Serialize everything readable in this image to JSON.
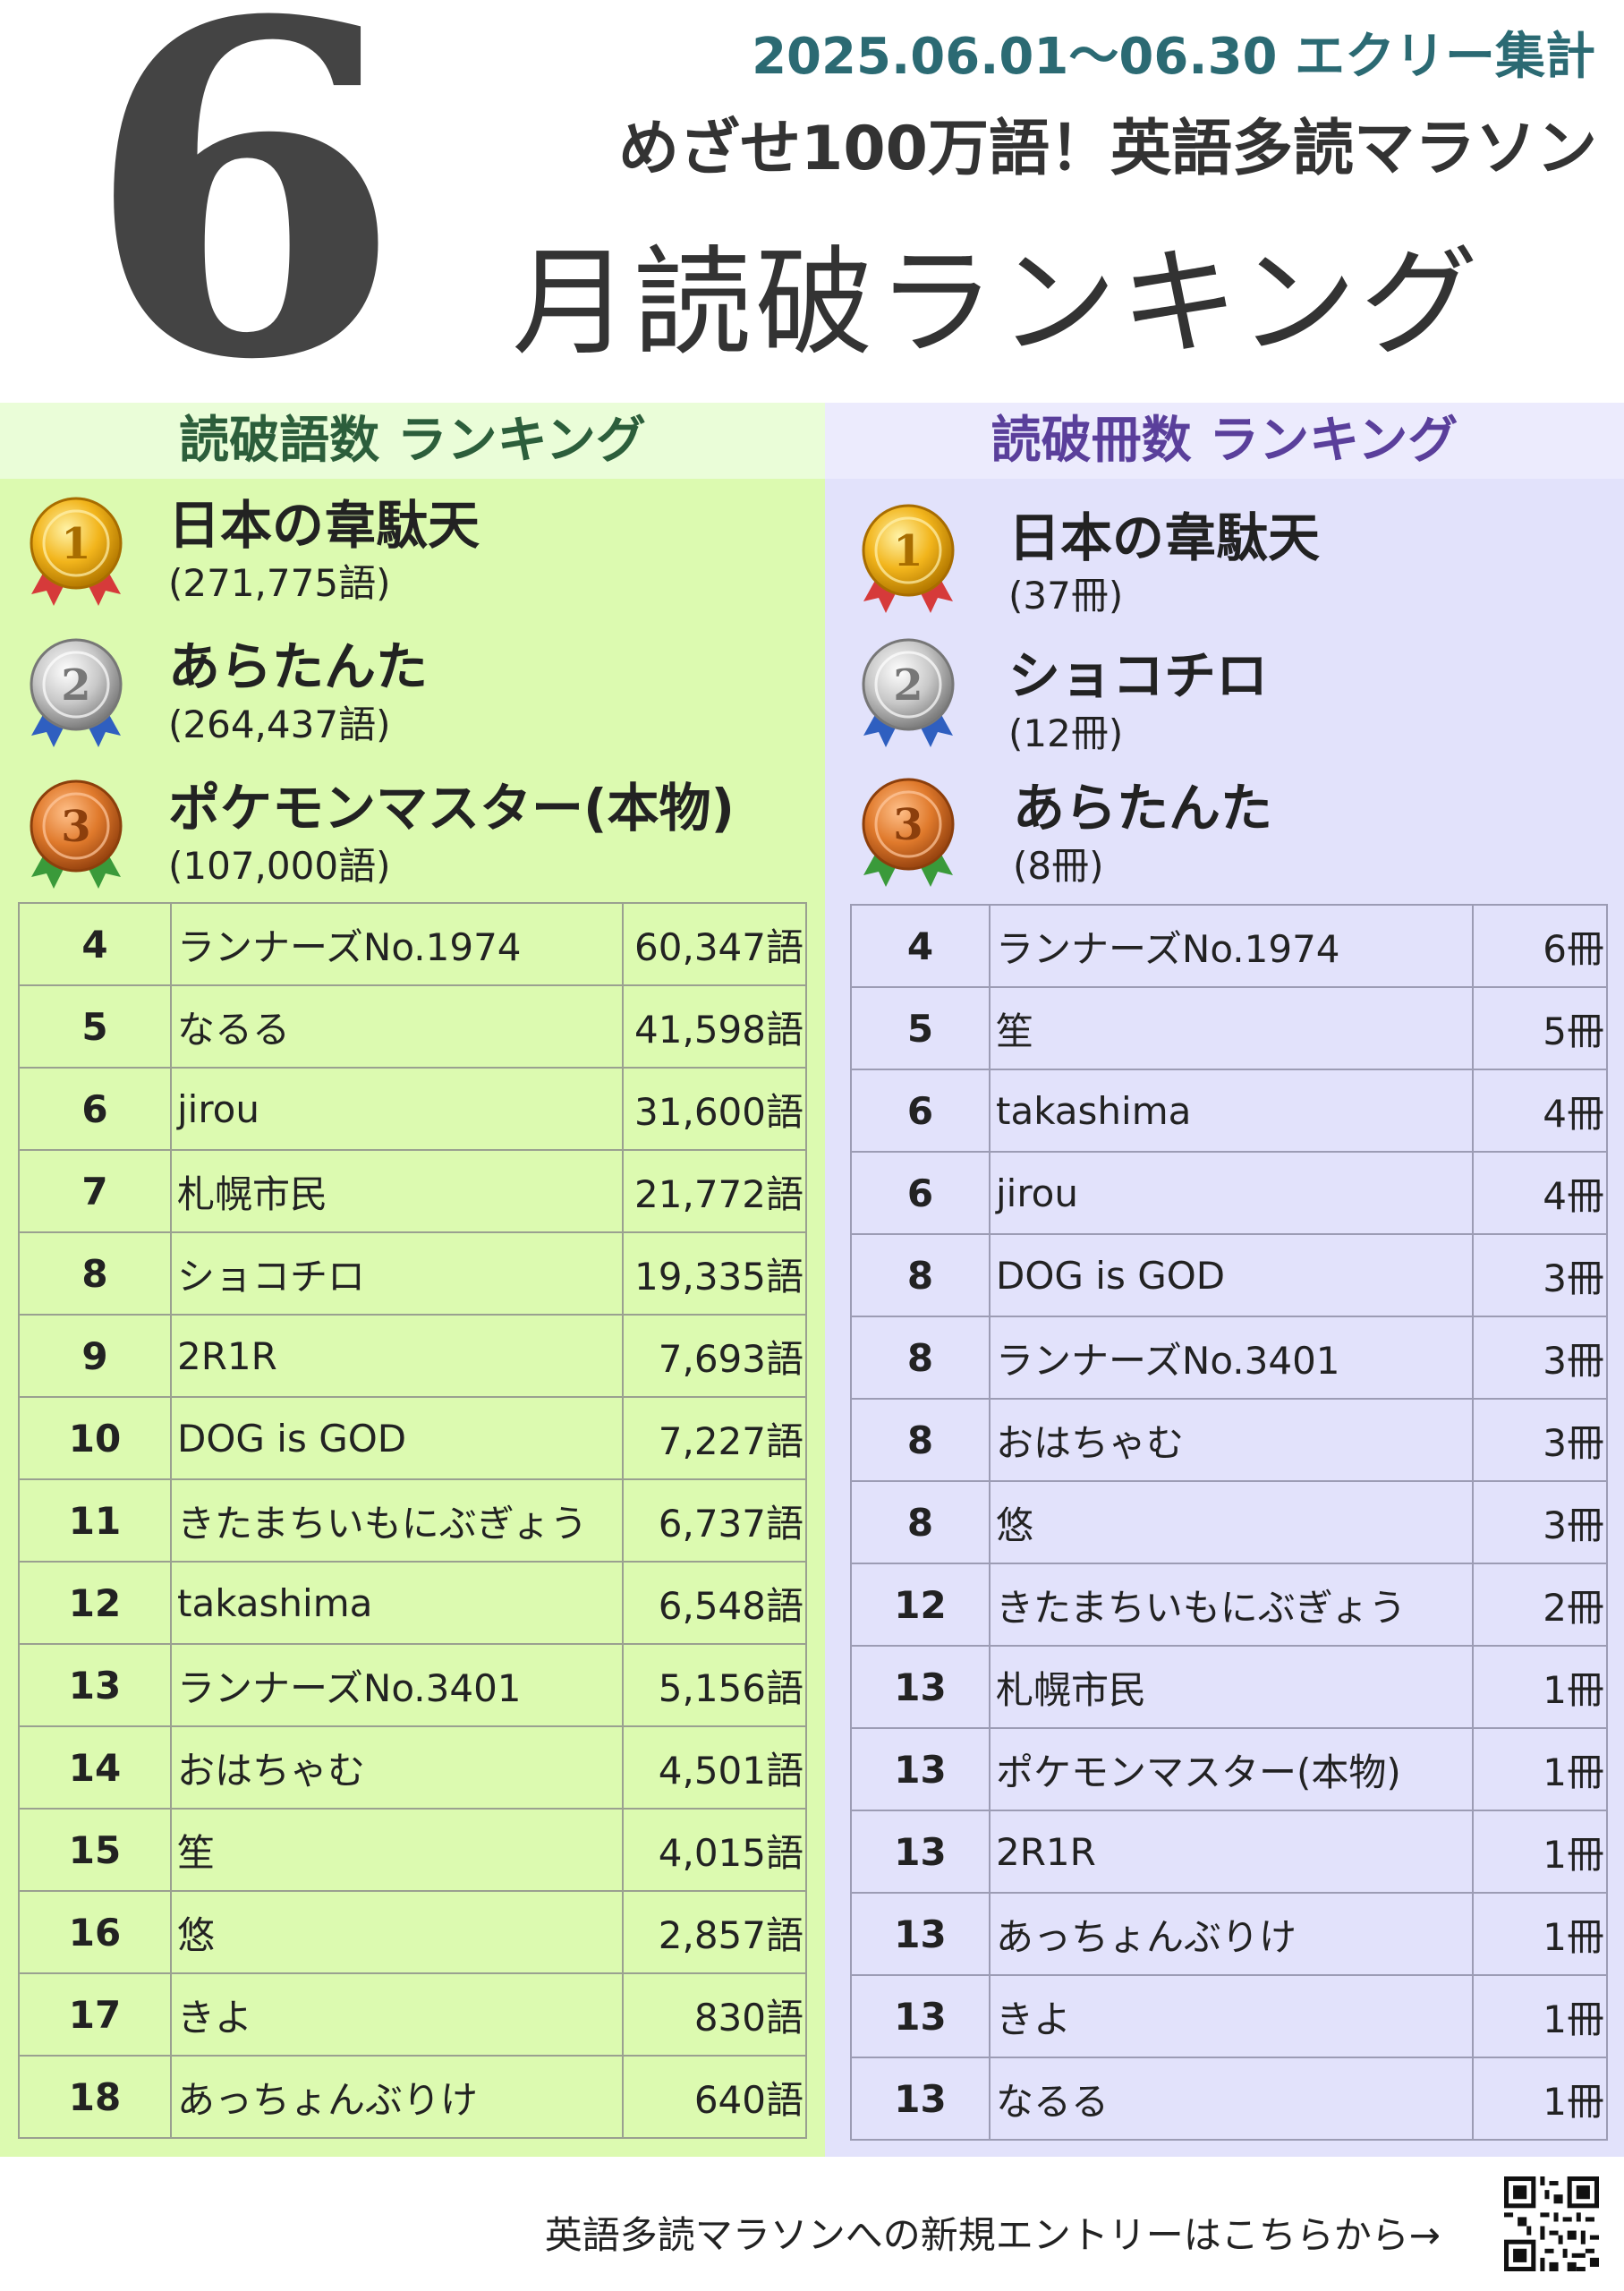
{
  "header": {
    "month_number": "6",
    "period": "2025.06.01～06.30 エクリー集計",
    "subtitle": "めざせ100万語！英語多読マラソン",
    "title": "月読破ランキング"
  },
  "words_ranking": {
    "heading_a": "読破語数",
    "heading_b": " ランキング",
    "top3": [
      {
        "rank": "1",
        "name": "日本の韋駄天",
        "value": "(271,775語)",
        "medal": "gold-medal-icon"
      },
      {
        "rank": "2",
        "name": "あらたんた",
        "value": "(264,437語)",
        "medal": "silver-medal-icon"
      },
      {
        "rank": "3",
        "name": "ポケモンマスター(本物)",
        "value": "(107,000語)",
        "medal": "bronze-medal-icon"
      }
    ],
    "rows": [
      {
        "rank": "4",
        "name": "ランナーズNo.1974",
        "value": "60,347語"
      },
      {
        "rank": "5",
        "name": "なるる",
        "value": "41,598語"
      },
      {
        "rank": "6",
        "name": "jirou",
        "value": "31,600語"
      },
      {
        "rank": "7",
        "name": "札幌市民",
        "value": "21,772語"
      },
      {
        "rank": "8",
        "name": "ショコチロ",
        "value": "19,335語"
      },
      {
        "rank": "9",
        "name": "2R1R",
        "value": "7,693語"
      },
      {
        "rank": "10",
        "name": "DOG is GOD",
        "value": "7,227語"
      },
      {
        "rank": "11",
        "name": "きたまちいもにぶぎょう",
        "value": "6,737語"
      },
      {
        "rank": "12",
        "name": "takashima",
        "value": "6,548語"
      },
      {
        "rank": "13",
        "name": "ランナーズNo.3401",
        "value": "5,156語"
      },
      {
        "rank": "14",
        "name": "おはちゃむ",
        "value": "4,501語"
      },
      {
        "rank": "15",
        "name": "笙",
        "value": "4,015語"
      },
      {
        "rank": "16",
        "name": "悠",
        "value": "2,857語"
      },
      {
        "rank": "17",
        "name": "きよ",
        "value": "830語"
      },
      {
        "rank": "18",
        "name": "あっちょんぶりけ",
        "value": "640語"
      }
    ]
  },
  "books_ranking": {
    "heading_a": "読破冊数",
    "heading_b": " ランキング",
    "top3": [
      {
        "rank": "1",
        "name": "日本の韋駄天",
        "value": "(37冊)",
        "medal": "gold-medal-icon"
      },
      {
        "rank": "2",
        "name": "ショコチロ",
        "value": "(12冊)",
        "medal": "silver-medal-icon"
      },
      {
        "rank": "3",
        "name": "あらたんた",
        "value": "(8冊)",
        "medal": "bronze-medal-icon"
      }
    ],
    "rows": [
      {
        "rank": "4",
        "name": "ランナーズNo.1974",
        "value": "6冊"
      },
      {
        "rank": "5",
        "name": "笙",
        "value": "5冊"
      },
      {
        "rank": "6",
        "name": "takashima",
        "value": "4冊"
      },
      {
        "rank": "6",
        "name": "jirou",
        "value": "4冊"
      },
      {
        "rank": "8",
        "name": "DOG is GOD",
        "value": "3冊"
      },
      {
        "rank": "8",
        "name": "ランナーズNo.3401",
        "value": "3冊"
      },
      {
        "rank": "8",
        "name": "おはちゃむ",
        "value": "3冊"
      },
      {
        "rank": "8",
        "name": "悠",
        "value": "3冊"
      },
      {
        "rank": "12",
        "name": "きたまちいもにぶぎょう",
        "value": "2冊"
      },
      {
        "rank": "13",
        "name": "札幌市民",
        "value": "1冊"
      },
      {
        "rank": "13",
        "name": "ポケモンマスター(本物)",
        "value": "1冊"
      },
      {
        "rank": "13",
        "name": "2R1R",
        "value": "1冊"
      },
      {
        "rank": "13",
        "name": "あっちょんぶりけ",
        "value": "1冊"
      },
      {
        "rank": "13",
        "name": "きよ",
        "value": "1冊"
      },
      {
        "rank": "13",
        "name": "なるる",
        "value": "1冊"
      }
    ]
  },
  "footer": {
    "entry_text": "英語多読マラソンへの新規エントリーはこちらから→",
    "qr_icon": "qr-code-icon"
  },
  "colors": {
    "words_bg": "#dcfab0",
    "books_bg": "#e2e2fb",
    "words_heading": "#2c5e3b",
    "books_heading": "#5a3f9b",
    "period_text": "#2b6a73",
    "gold": "#f2b51c",
    "silver": "#c8c8c8",
    "bronze": "#e07a2c"
  }
}
